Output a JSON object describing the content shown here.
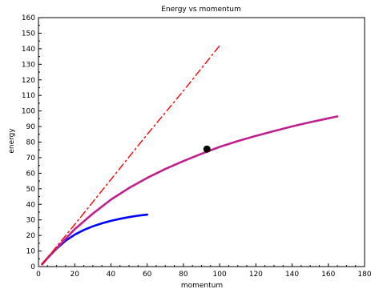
{
  "chart_data": {
    "type": "line",
    "title": "Energy vs momentum",
    "xlabel": "momentum",
    "ylabel": "energy",
    "xlim": [
      0,
      180
    ],
    "ylim": [
      0,
      160
    ],
    "xticks": [
      0,
      20,
      40,
      60,
      80,
      100,
      120,
      140,
      160,
      180
    ],
    "yticks": [
      0,
      10,
      20,
      30,
      40,
      50,
      60,
      70,
      80,
      90,
      100,
      110,
      120,
      130,
      140,
      150,
      160
    ],
    "grid": false,
    "series": [
      {
        "color": "#0000ff",
        "style": "solid",
        "x": [
          2,
          5,
          10,
          15,
          20,
          25,
          30,
          35,
          40,
          45,
          50,
          55,
          60
        ],
        "y": [
          1.5,
          5.5,
          11.5,
          16.6,
          20.5,
          23.5,
          25.9,
          27.8,
          29.4,
          30.7,
          31.8,
          32.7,
          33.4
        ]
      },
      {
        "color": "#c0208f",
        "style": "solid",
        "x": [
          2,
          5,
          10,
          20,
          30,
          40,
          50,
          60,
          70,
          80,
          90,
          100,
          110,
          120,
          130,
          140,
          150,
          160,
          165
        ],
        "y": [
          1.5,
          5.5,
          11.8,
          24,
          34,
          43,
          50.5,
          57,
          62.7,
          67.8,
          72.5,
          76.9,
          80.6,
          84,
          87.1,
          90.1,
          92.8,
          95.3,
          96.5
        ]
      },
      {
        "color": "#ff0000",
        "style": "dashdot",
        "x": [
          2,
          20,
          40,
          60,
          80,
          100
        ],
        "y": [
          1.5,
          27,
          56,
          85,
          113,
          142
        ]
      }
    ],
    "markers": [
      {
        "x": 93,
        "y": 75.5,
        "color": "#000000"
      }
    ]
  }
}
